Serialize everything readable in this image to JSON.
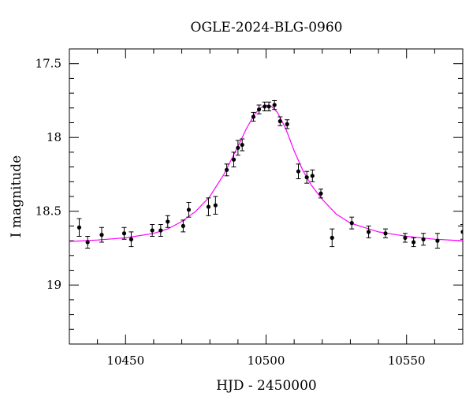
{
  "chart_data": {
    "type": "scatter",
    "title": "OGLE-2024-BLG-0960",
    "xlabel": "HJD - 2450000",
    "ylabel": "I magnitude",
    "xlim": [
      10430,
      10570
    ],
    "ylim": [
      19.4,
      17.4
    ],
    "y_inverted": true,
    "xticks": [
      10450,
      10500,
      10550
    ],
    "yticks": [
      17.5,
      18,
      18.5,
      19
    ],
    "xtick_labels": [
      "10450",
      "10500",
      "10550"
    ],
    "ytick_labels": [
      "17.5",
      "18",
      "18.5",
      "19"
    ],
    "grid": false,
    "colors": {
      "points": "#000000",
      "model": "#ff00ff",
      "axes": "#000000"
    },
    "points": [
      {
        "x": 10433.5,
        "y": 18.61,
        "err": 0.06
      },
      {
        "x": 10436.5,
        "y": 18.71,
        "err": 0.04
      },
      {
        "x": 10441.5,
        "y": 18.66,
        "err": 0.05
      },
      {
        "x": 10449.5,
        "y": 18.65,
        "err": 0.04
      },
      {
        "x": 10452.0,
        "y": 18.69,
        "err": 0.05
      },
      {
        "x": 10459.5,
        "y": 18.63,
        "err": 0.04
      },
      {
        "x": 10462.5,
        "y": 18.63,
        "err": 0.04
      },
      {
        "x": 10465.0,
        "y": 18.57,
        "err": 0.04
      },
      {
        "x": 10470.5,
        "y": 18.6,
        "err": 0.04
      },
      {
        "x": 10472.5,
        "y": 18.49,
        "err": 0.05
      },
      {
        "x": 10479.5,
        "y": 18.47,
        "err": 0.06
      },
      {
        "x": 10482.0,
        "y": 18.46,
        "err": 0.06
      },
      {
        "x": 10486.0,
        "y": 18.22,
        "err": 0.04
      },
      {
        "x": 10488.5,
        "y": 18.15,
        "err": 0.05
      },
      {
        "x": 10490.0,
        "y": 18.07,
        "err": 0.05
      },
      {
        "x": 10491.5,
        "y": 18.05,
        "err": 0.04
      },
      {
        "x": 10495.5,
        "y": 17.86,
        "err": 0.03
      },
      {
        "x": 10497.5,
        "y": 17.81,
        "err": 0.03
      },
      {
        "x": 10499.5,
        "y": 17.79,
        "err": 0.03
      },
      {
        "x": 10501.0,
        "y": 17.79,
        "err": 0.03
      },
      {
        "x": 10503.0,
        "y": 17.78,
        "err": 0.03
      },
      {
        "x": 10505.0,
        "y": 17.89,
        "err": 0.03
      },
      {
        "x": 10507.5,
        "y": 17.91,
        "err": 0.03
      },
      {
        "x": 10511.5,
        "y": 18.23,
        "err": 0.05
      },
      {
        "x": 10514.5,
        "y": 18.27,
        "err": 0.04
      },
      {
        "x": 10516.5,
        "y": 18.26,
        "err": 0.04
      },
      {
        "x": 10519.5,
        "y": 18.38,
        "err": 0.03
      },
      {
        "x": 10523.5,
        "y": 18.68,
        "err": 0.06
      },
      {
        "x": 10530.5,
        "y": 18.58,
        "err": 0.04
      },
      {
        "x": 10536.5,
        "y": 18.64,
        "err": 0.04
      },
      {
        "x": 10542.5,
        "y": 18.65,
        "err": 0.03
      },
      {
        "x": 10549.5,
        "y": 18.68,
        "err": 0.03
      },
      {
        "x": 10552.5,
        "y": 18.71,
        "err": 0.03
      },
      {
        "x": 10556.0,
        "y": 18.69,
        "err": 0.04
      },
      {
        "x": 10561.0,
        "y": 18.7,
        "err": 0.05
      },
      {
        "x": 10570.0,
        "y": 18.64,
        "err": 0.05
      }
    ],
    "model": [
      {
        "x": 10430,
        "y": 18.705
      },
      {
        "x": 10440,
        "y": 18.695
      },
      {
        "x": 10450,
        "y": 18.68
      },
      {
        "x": 10460,
        "y": 18.65
      },
      {
        "x": 10465,
        "y": 18.62
      },
      {
        "x": 10470,
        "y": 18.57
      },
      {
        "x": 10475,
        "y": 18.5
      },
      {
        "x": 10480,
        "y": 18.4
      },
      {
        "x": 10485,
        "y": 18.25
      },
      {
        "x": 10490,
        "y": 18.06
      },
      {
        "x": 10493,
        "y": 17.94
      },
      {
        "x": 10496,
        "y": 17.84
      },
      {
        "x": 10498,
        "y": 17.8
      },
      {
        "x": 10500,
        "y": 17.78
      },
      {
        "x": 10502,
        "y": 17.79
      },
      {
        "x": 10504,
        "y": 17.83
      },
      {
        "x": 10507,
        "y": 17.94
      },
      {
        "x": 10510,
        "y": 18.09
      },
      {
        "x": 10513,
        "y": 18.22
      },
      {
        "x": 10516,
        "y": 18.32
      },
      {
        "x": 10520,
        "y": 18.42
      },
      {
        "x": 10525,
        "y": 18.52
      },
      {
        "x": 10530,
        "y": 18.58
      },
      {
        "x": 10540,
        "y": 18.64
      },
      {
        "x": 10550,
        "y": 18.67
      },
      {
        "x": 10560,
        "y": 18.69
      },
      {
        "x": 10570,
        "y": 18.7
      }
    ]
  }
}
